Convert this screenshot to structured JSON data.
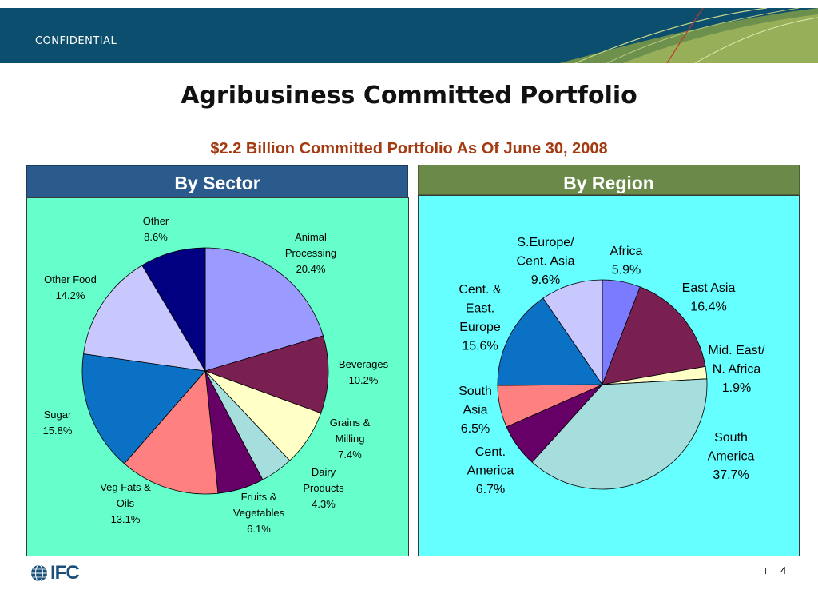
{
  "header": {
    "confidential": "CONFIDENTIAL"
  },
  "title": "Agribusiness Committed Portfolio",
  "subtitle": "$2.2 Billion Committed Portfolio As Of June 30, 2008",
  "footer": {
    "logo_text": "IFC",
    "page_separator": "I",
    "page_number": "4"
  },
  "colors": {
    "banner": "#0c4e6e",
    "subtitle": "#a33a10",
    "sector_header": "#2b5a8c",
    "region_header": "#6b8a4a",
    "sector_panel": "#66ffcc",
    "region_panel": "#66ffff"
  },
  "chart_data": [
    {
      "type": "pie",
      "title": "By Sector",
      "slices": [
        {
          "label": [
            "Animal",
            "Processing",
            "20.4%"
          ],
          "value": 20.4,
          "color": "#9b9bff"
        },
        {
          "label": [
            "Beverages",
            "10.2%"
          ],
          "value": 10.2,
          "color": "#7a1f52"
        },
        {
          "label": [
            "Grains &",
            "Milling",
            "7.4%"
          ],
          "value": 7.4,
          "color": "#ffffc6"
        },
        {
          "label": [
            "Dairy",
            "Products",
            "4.3%"
          ],
          "value": 4.3,
          "color": "#a6dede"
        },
        {
          "label": [
            "Fruits &",
            "Vegetables",
            "6.1%"
          ],
          "value": 6.1,
          "color": "#660066"
        },
        {
          "label": [
            "Veg Fats &",
            "Oils",
            "13.1%"
          ],
          "value": 13.1,
          "color": "#ff8080"
        },
        {
          "label": [
            "Sugar",
            "15.8%"
          ],
          "value": 15.8,
          "color": "#0a71c4"
        },
        {
          "label": [
            "Other Food",
            "14.2%"
          ],
          "value": 14.2,
          "color": "#c8c8ff"
        },
        {
          "label": [
            "Other",
            "8.6%"
          ],
          "value": 8.6,
          "color": "#000080"
        }
      ]
    },
    {
      "type": "pie",
      "title": "By Region",
      "slices": [
        {
          "label": [
            "Africa",
            "5.9%"
          ],
          "value": 5.9,
          "color": "#7b7bff"
        },
        {
          "label": [
            "East Asia",
            "16.4%"
          ],
          "value": 16.4,
          "color": "#7a1f52"
        },
        {
          "label": [
            "Mid. East/",
            "N. Africa",
            "1.9%"
          ],
          "value": 1.9,
          "color": "#ffffc6"
        },
        {
          "label": [
            "South",
            "America",
            "37.7%"
          ],
          "value": 37.7,
          "color": "#a6dede"
        },
        {
          "label": [
            "Cent.",
            "America",
            "6.7%"
          ],
          "value": 6.7,
          "color": "#660066"
        },
        {
          "label": [
            "South",
            "Asia",
            "6.5%"
          ],
          "value": 6.5,
          "color": "#ff8080"
        },
        {
          "label": [
            "Cent. &",
            "East.",
            "Europe",
            "15.6%"
          ],
          "value": 15.6,
          "color": "#0a71c4"
        },
        {
          "label": [
            "S.Europe/",
            "Cent. Asia",
            "9.6%"
          ],
          "value": 9.6,
          "color": "#c8c8ff"
        }
      ]
    }
  ]
}
